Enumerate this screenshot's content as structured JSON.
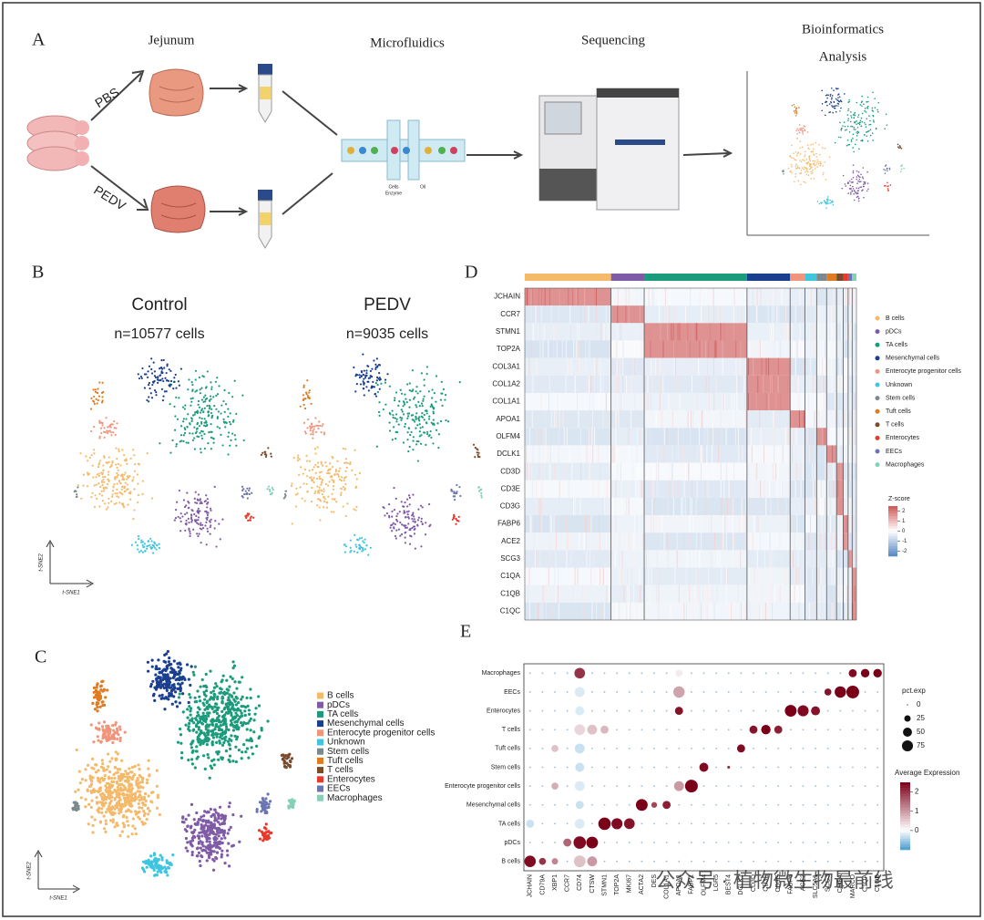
{
  "panel_a": {
    "label": "A",
    "steps": [
      "Jejunum",
      "Microfluidics",
      "Sequencing",
      "Bioinformatics",
      "Analysis"
    ],
    "groups": [
      "PBS",
      "PEDV"
    ],
    "chip_labels": [
      "Cells",
      "Enzyme",
      "Oil"
    ]
  },
  "panel_b": {
    "label": "B",
    "plots": [
      {
        "title": "Control",
        "subtitle": "n=10577 cells"
      },
      {
        "title": "PEDV",
        "subtitle": "n=9035 cells"
      }
    ],
    "axis_x": "t-SNE1",
    "axis_y": "t-SNE2"
  },
  "cell_types": [
    {
      "name": "B cells",
      "color": "#f5b96a"
    },
    {
      "name": "pDCs",
      "color": "#7f5aa6"
    },
    {
      "name": "TA cells",
      "color": "#1a9b7c"
    },
    {
      "name": "Mesenchymal cells",
      "color": "#1b3f8f"
    },
    {
      "name": "Enterocyte progenitor cells",
      "color": "#f0957c"
    },
    {
      "name": "Unknown",
      "color": "#3ec5e0"
    },
    {
      "name": "Stem cells",
      "color": "#7b8a8f"
    },
    {
      "name": "Tuft cells",
      "color": "#e07b1f"
    },
    {
      "name": "T cells",
      "color": "#7a4a2a"
    },
    {
      "name": "Enterocytes",
      "color": "#e8392b"
    },
    {
      "name": "EECs",
      "color": "#6a75b3"
    },
    {
      "name": "Macrophages",
      "color": "#86d0b8"
    }
  ],
  "panel_c": {
    "label": "C",
    "axis_x": "t-SNE1",
    "axis_y": "t-SNE2"
  },
  "panel_d": {
    "label": "D",
    "genes": [
      {
        "name": "JCHAIN",
        "high_in": 0
      },
      {
        "name": "CCR7",
        "high_in": 1
      },
      {
        "name": "STMN1",
        "high_in": 2
      },
      {
        "name": "TOP2A",
        "high_in": 2
      },
      {
        "name": "COL3A1",
        "high_in": 3
      },
      {
        "name": "COL1A2",
        "high_in": 3
      },
      {
        "name": "COL1A1",
        "high_in": 3
      },
      {
        "name": "APOA1",
        "high_in": 4
      },
      {
        "name": "OLFM4",
        "high_in": 6
      },
      {
        "name": "DCLK1",
        "high_in": 7
      },
      {
        "name": "CD3D",
        "high_in": 8
      },
      {
        "name": "CD3E",
        "high_in": 8
      },
      {
        "name": "CD3G",
        "high_in": 8
      },
      {
        "name": "FABP6",
        "high_in": 9
      },
      {
        "name": "ACE2",
        "high_in": 9
      },
      {
        "name": "SCG3",
        "high_in": 10
      },
      {
        "name": "C1QA",
        "high_in": 11
      },
      {
        "name": "C1QB",
        "high_in": 11
      },
      {
        "name": "C1QC",
        "high_in": 11
      }
    ],
    "colorbar_title": "Z-score",
    "colorbar_ticks": [
      2,
      1,
      0,
      -1,
      -2
    ],
    "colorbar_lim": [
      -2.5,
      2.5
    ]
  },
  "panel_e": {
    "label": "E",
    "rows": [
      "Macrophages",
      "EECs",
      "Enterocytes",
      "T cells",
      "Tuft cells",
      "Stem cells",
      "Enterocyte progenitor cells",
      "Mesenchymal cells",
      "TA cells",
      "pDCs",
      "B cells"
    ],
    "genes": [
      "JCHAIN",
      "CD79A",
      "XBP1",
      "CCR7",
      "CD74",
      "CTSW",
      "STMN1",
      "TOP2A",
      "MKI67",
      "ACTA2",
      "DES",
      "COL1A1",
      "APOA1",
      "FABP1",
      "OLFM4",
      "LGR5",
      "BEST4",
      "DCLK1",
      "CD3D",
      "CD3E",
      "CD3G",
      "FABP6",
      "ACE2",
      "SLC5A1",
      "SCG3",
      "CHGA",
      "MARCO",
      "C1QA",
      "C1QB"
    ],
    "dots": [
      {
        "row": 10,
        "gene": 0,
        "pct": 80,
        "expr": 2.4
      },
      {
        "row": 10,
        "gene": 1,
        "pct": 30,
        "expr": 2.0
      },
      {
        "row": 10,
        "gene": 2,
        "pct": 25,
        "expr": 1.2
      },
      {
        "row": 10,
        "gene": 4,
        "pct": 85,
        "expr": 0.6
      },
      {
        "row": 10,
        "gene": 5,
        "pct": 60,
        "expr": 1.0
      },
      {
        "row": 9,
        "gene": 3,
        "pct": 40,
        "expr": 1.5
      },
      {
        "row": 9,
        "gene": 4,
        "pct": 95,
        "expr": 2.4
      },
      {
        "row": 9,
        "gene": 5,
        "pct": 85,
        "expr": 2.5
      },
      {
        "row": 8,
        "gene": 0,
        "pct": 40,
        "expr": -0.3
      },
      {
        "row": 8,
        "gene": 4,
        "pct": 60,
        "expr": -0.2
      },
      {
        "row": 8,
        "gene": 6,
        "pct": 95,
        "expr": 2.5
      },
      {
        "row": 8,
        "gene": 7,
        "pct": 75,
        "expr": 2.4
      },
      {
        "row": 8,
        "gene": 8,
        "pct": 70,
        "expr": 2.3
      },
      {
        "row": 7,
        "gene": 4,
        "pct": 40,
        "expr": -0.3
      },
      {
        "row": 7,
        "gene": 9,
        "pct": 85,
        "expr": 2.5
      },
      {
        "row": 7,
        "gene": 10,
        "pct": 20,
        "expr": 1.8
      },
      {
        "row": 7,
        "gene": 11,
        "pct": 40,
        "expr": 2.2
      },
      {
        "row": 6,
        "gene": 2,
        "pct": 30,
        "expr": 0.8
      },
      {
        "row": 6,
        "gene": 4,
        "pct": 60,
        "expr": -0.2
      },
      {
        "row": 6,
        "gene": 12,
        "pct": 60,
        "expr": 1.0
      },
      {
        "row": 6,
        "gene": 13,
        "pct": 100,
        "expr": 2.5
      },
      {
        "row": 5,
        "gene": 4,
        "pct": 50,
        "expr": -0.3
      },
      {
        "row": 5,
        "gene": 14,
        "pct": 50,
        "expr": 2.4
      },
      {
        "row": 5,
        "gene": 16,
        "pct": 5,
        "expr": 2.0
      },
      {
        "row": 4,
        "gene": 2,
        "pct": 30,
        "expr": 0.6
      },
      {
        "row": 4,
        "gene": 4,
        "pct": 60,
        "expr": -0.3
      },
      {
        "row": 4,
        "gene": 17,
        "pct": 40,
        "expr": 2.4
      },
      {
        "row": 3,
        "gene": 4,
        "pct": 70,
        "expr": 0.4
      },
      {
        "row": 3,
        "gene": 5,
        "pct": 60,
        "expr": 0.6
      },
      {
        "row": 3,
        "gene": 6,
        "pct": 40,
        "expr": 0.7
      },
      {
        "row": 3,
        "gene": 18,
        "pct": 40,
        "expr": 2.3
      },
      {
        "row": 3,
        "gene": 19,
        "pct": 55,
        "expr": 2.5
      },
      {
        "row": 3,
        "gene": 20,
        "pct": 40,
        "expr": 2.2
      },
      {
        "row": 2,
        "gene": 4,
        "pct": 50,
        "expr": -0.2
      },
      {
        "row": 2,
        "gene": 12,
        "pct": 40,
        "expr": 2.3
      },
      {
        "row": 2,
        "gene": 21,
        "pct": 85,
        "expr": 2.5
      },
      {
        "row": 2,
        "gene": 22,
        "pct": 75,
        "expr": 2.4
      },
      {
        "row": 2,
        "gene": 23,
        "pct": 50,
        "expr": 2.3
      },
      {
        "row": 1,
        "gene": 4,
        "pct": 60,
        "expr": -0.2
      },
      {
        "row": 1,
        "gene": 12,
        "pct": 80,
        "expr": 0.9
      },
      {
        "row": 1,
        "gene": 24,
        "pct": 30,
        "expr": 2.3
      },
      {
        "row": 1,
        "gene": 25,
        "pct": 80,
        "expr": 2.5
      },
      {
        "row": 1,
        "gene": 26,
        "pct": 100,
        "expr": 2.5
      },
      {
        "row": 0,
        "gene": 4,
        "pct": 70,
        "expr": 2.0
      },
      {
        "row": 0,
        "gene": 12,
        "pct": 30,
        "expr": 0.2
      },
      {
        "row": 0,
        "gene": 26,
        "pct": 40,
        "expr": 2.4
      },
      {
        "row": 0,
        "gene": 27,
        "pct": 45,
        "expr": 2.5
      },
      {
        "row": 0,
        "gene": 28,
        "pct": 45,
        "expr": 2.5
      }
    ],
    "size_title": "pct.exp",
    "size_ticks": [
      0,
      25,
      50,
      75
    ],
    "color_title": "Average Expression",
    "color_ticks": [
      2,
      1,
      0
    ],
    "color_lim": [
      -1,
      2.5
    ]
  },
  "watermark": "公众号 · 植物微生物最前线"
}
